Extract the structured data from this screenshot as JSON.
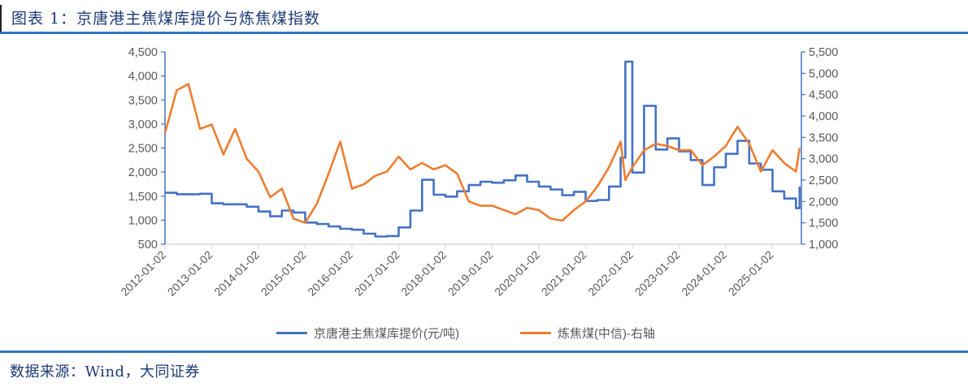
{
  "header": {
    "title": "图表 1：京唐港主焦煤库提价与炼焦煤指数"
  },
  "footer": {
    "source": "数据来源：Wind，大同证券"
  },
  "colors": {
    "series_blue": "#4472C4",
    "series_orange": "#ED7D31",
    "axis": "#4472C4",
    "tick_text": "#595959",
    "rule": "#2E75C9",
    "title_text": "#1F3A78"
  },
  "legend": {
    "items": [
      {
        "label": "京唐港主焦煤库提价(元/吨)",
        "color": "#4472C4"
      },
      {
        "label": "炼焦煤(中信)-右轴",
        "color": "#ED7D31"
      }
    ]
  },
  "chart_data": {
    "type": "line",
    "title": "京唐港主焦煤库提价与炼焦煤指数",
    "xlabel": "",
    "ylabel": "京唐港主焦煤库提价(元/吨)",
    "y2label": "炼焦煤(中信)",
    "ylim": [
      500,
      4500
    ],
    "y2lim": [
      1000,
      5500
    ],
    "yticks": [
      "500",
      "1,000",
      "1,500",
      "2,000",
      "2,500",
      "3,000",
      "3,500",
      "4,000",
      "4,500"
    ],
    "y2ticks": [
      "1,000",
      "1,500",
      "2,000",
      "2,500",
      "3,000",
      "3,500",
      "4,000",
      "4,500",
      "5,000",
      "5,500"
    ],
    "xticks": [
      "2012-01-02",
      "2013-01-02",
      "2014-01-02",
      "2015-01-02",
      "2016-01-02",
      "2017-01-02",
      "2018-01-02",
      "2019-01-02",
      "2020-01-02",
      "2021-01-02",
      "2022-01-02",
      "2023-01-02",
      "2024-01-02",
      "2025-01-02"
    ],
    "grid": false,
    "legend_position": "bottom",
    "x": [
      2012.0,
      2012.25,
      2012.5,
      2012.75,
      2013.0,
      2013.25,
      2013.5,
      2013.75,
      2014.0,
      2014.25,
      2014.5,
      2014.75,
      2015.0,
      2015.25,
      2015.5,
      2015.75,
      2016.0,
      2016.25,
      2016.5,
      2016.75,
      2017.0,
      2017.25,
      2017.5,
      2017.75,
      2018.0,
      2018.25,
      2018.5,
      2018.75,
      2019.0,
      2019.25,
      2019.5,
      2019.75,
      2020.0,
      2020.25,
      2020.5,
      2020.75,
      2021.0,
      2021.25,
      2021.5,
      2021.75,
      2021.85,
      2022.0,
      2022.25,
      2022.5,
      2022.75,
      2023.0,
      2023.25,
      2023.5,
      2023.75,
      2024.0,
      2024.25,
      2024.5,
      2024.75,
      2025.0,
      2025.25,
      2025.5,
      2025.58
    ],
    "series": [
      {
        "name": "京唐港主焦煤库提价(元/吨)",
        "axis": "left",
        "color": "#4472C4",
        "values": [
          1570,
          1540,
          1540,
          1550,
          1350,
          1330,
          1330,
          1280,
          1180,
          1080,
          1200,
          1160,
          950,
          920,
          870,
          820,
          800,
          720,
          660,
          670,
          850,
          1200,
          1840,
          1530,
          1490,
          1600,
          1730,
          1800,
          1780,
          1830,
          1930,
          1800,
          1700,
          1640,
          1520,
          1590,
          1400,
          1420,
          1700,
          2300,
          4300,
          1990,
          3380,
          2470,
          2700,
          2430,
          2250,
          1730,
          2100,
          2380,
          2650,
          2180,
          2050,
          1600,
          1450,
          1250,
          1700
        ]
      },
      {
        "name": "炼焦煤(中信)-右轴",
        "axis": "right",
        "color": "#ED7D31",
        "values": [
          3600,
          4600,
          4750,
          3700,
          3800,
          3100,
          3700,
          3000,
          2700,
          2100,
          2300,
          1600,
          1500,
          1950,
          2650,
          3400,
          2300,
          2400,
          2600,
          2700,
          3050,
          2750,
          2900,
          2750,
          2850,
          2650,
          2000,
          1900,
          1900,
          1800,
          1700,
          1850,
          1800,
          1600,
          1550,
          1800,
          2000,
          2350,
          2800,
          3400,
          2500,
          2800,
          3200,
          3350,
          3300,
          3200,
          3200,
          2850,
          3050,
          3300,
          3750,
          3350,
          2700,
          3200,
          2900,
          2700,
          3250
        ]
      }
    ]
  }
}
